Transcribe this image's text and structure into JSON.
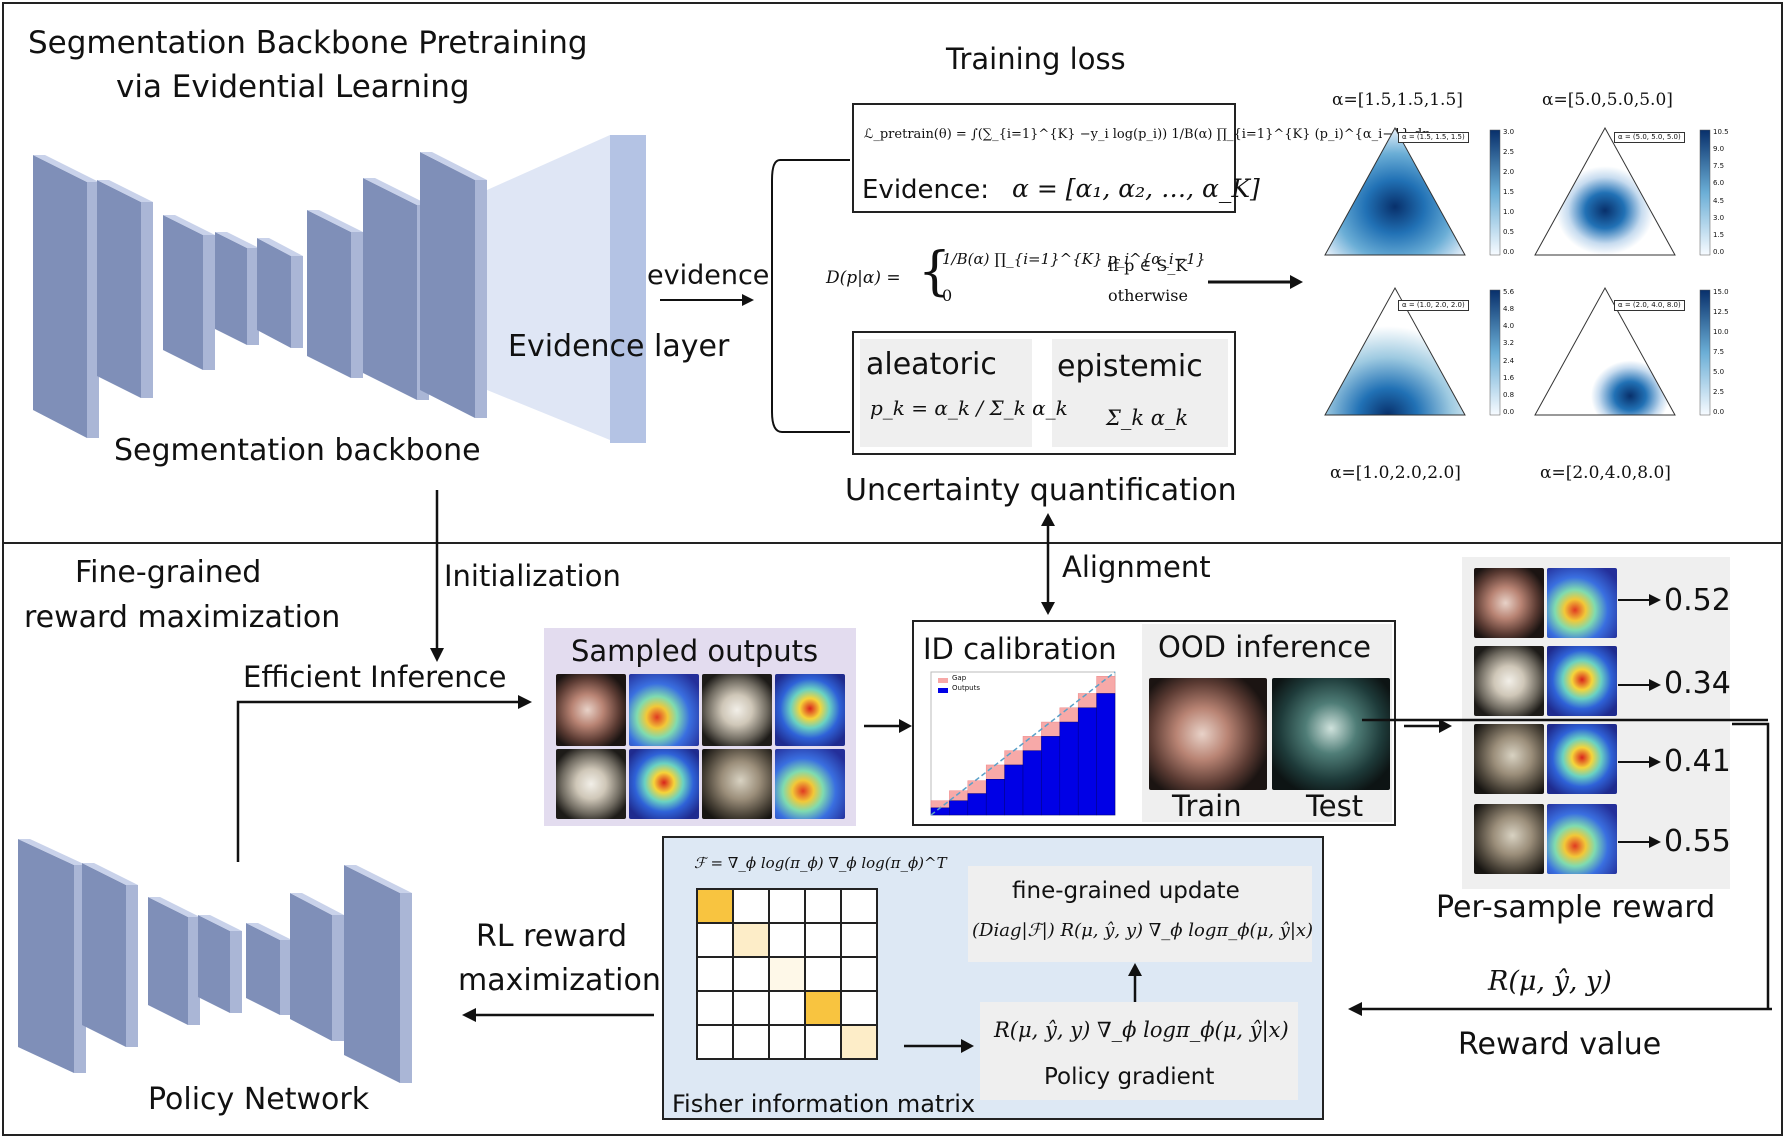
{
  "top": {
    "title_line1": "Segmentation Backbone Pretraining",
    "title_line2": "via Evidential Learning",
    "backbone_label": "Segmentation backbone",
    "evidence_layer_label": "Evidence layer",
    "evidence_arrow_label": "evidence",
    "training_loss_title": "Training loss",
    "loss_formula": "ℒ_pretrain(θ) = ∫(∑_{i=1}^{K} −y_i log(p_i)) 1/B(α) ∏_{i=1}^{K} (p_i)^{α_i−1} dp",
    "evidence_formula_label": "Evidence:",
    "evidence_formula": "α = [α₁, α₂, …, α_K]",
    "dirichlet_lhs": "D(p|α) =",
    "dirichlet_case1": "1/B(α) ∏_{i=1}^{K} p_i^{α_i−1}",
    "dirichlet_case1_cond": "if p ∈ S_K",
    "dirichlet_case2": "0",
    "dirichlet_case2_cond": "otherwise",
    "aleatoric_label": "aleatoric",
    "aleatoric_formula": "p_k = α_k / Σ_k α_k",
    "epistemic_label": "epistemic",
    "epistemic_formula": "Σ_k α_k",
    "uncertainty_label": "Uncertainty quantification",
    "simplex_plots": [
      {
        "label": "α=[1.5,1.5,1.5]",
        "legend": "α = (1.5, 1.5, 1.5)",
        "colorbar": [
          "3.0",
          "2.5",
          "2.0",
          "1.5",
          "1.0",
          "0.5",
          "0.0"
        ]
      },
      {
        "label": "α=[5.0,5.0,5.0]",
        "legend": "α = (5.0, 5.0, 5.0)",
        "colorbar": [
          "10.5",
          "9.0",
          "7.5",
          "6.0",
          "4.5",
          "3.0",
          "1.5",
          "0.0"
        ]
      },
      {
        "label": "α=[1.0,2.0,2.0]",
        "legend": "α = (1.0, 2.0, 2.0)",
        "colorbar": [
          "5.6",
          "4.8",
          "4.0",
          "3.2",
          "2.4",
          "1.6",
          "0.8",
          "0.0"
        ]
      },
      {
        "label": "α=[2.0,4.0,8.0]",
        "legend": "α = (2.0, 4.0, 8.0)",
        "colorbar": [
          "15.0",
          "12.5",
          "10.0",
          "7.5",
          "5.0",
          "2.5",
          "0.0"
        ]
      }
    ]
  },
  "bottom": {
    "title_line1": "Fine-grained",
    "title_line2": "reward maximization",
    "initialization_label": "Initialization",
    "efficient_inference_label": "Efficient Inference",
    "sampled_outputs_label": "Sampled outputs",
    "alignment_label": "Alignment",
    "id_calibration_label": "ID calibration",
    "calibration_legend": [
      "Gap",
      "Outputs"
    ],
    "calibration_bars": [
      0.05,
      0.1,
      0.15,
      0.25,
      0.35,
      0.45,
      0.55,
      0.65,
      0.75,
      0.85
    ],
    "calibration_gaps": [
      0.05,
      0.07,
      0.09,
      0.1,
      0.1,
      0.1,
      0.1,
      0.1,
      0.1,
      0.12
    ],
    "ood_inference_label": "OOD inference",
    "train_label": "Train",
    "test_label": "Test",
    "rewards": [
      "0.52",
      "0.34",
      "0.41",
      "0.55"
    ],
    "per_sample_reward_label": "Per-sample  reward",
    "reward_fn_label": "R(μ, ŷ, y)",
    "reward_value_label": "Reward value",
    "fisher_formula": "ℱ = ∇_ϕ log(π_ϕ) ∇_ϕ log(π_ϕ)^T",
    "fisher_label": "Fisher information matrix",
    "fine_grained_update_title": "fine-grained update",
    "fine_grained_update_formula": "(Diag|ℱ|) R(μ, ŷ, y) ∇_ϕ logπ_ϕ(μ, ŷ|x)",
    "policy_gradient_formula": "R(μ, ŷ, y) ∇_ϕ logπ_ϕ(μ, ŷ|x)",
    "policy_gradient_label": "Policy gradient",
    "rl_reward_line1": "RL reward",
    "rl_reward_line2": "maximization",
    "policy_network_label": "Policy Network"
  },
  "colors": {
    "block_face": "#aab6d6",
    "block_side": "#7f8fb8",
    "block_top": "#c9d2ea",
    "sampled_bg": "#e3dcef",
    "fisher_bg": "#dde8f4",
    "fisher_highlight": "#f8c440",
    "calib_gap": "#f7a9a8",
    "calib_output": "#0000e6"
  }
}
